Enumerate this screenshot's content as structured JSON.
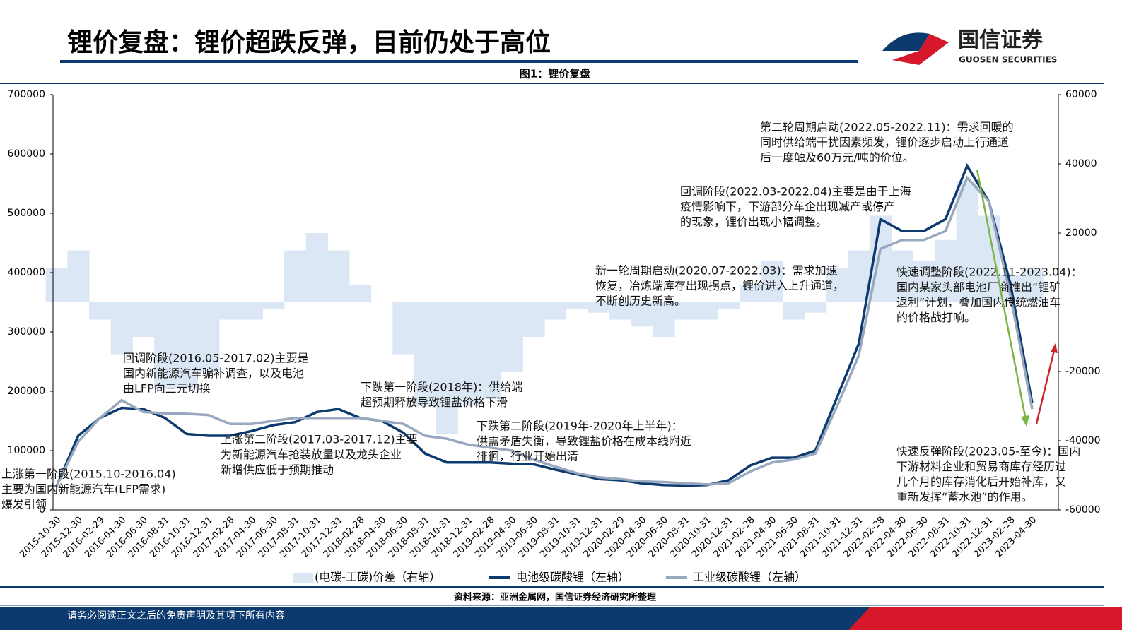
{
  "header": {
    "title": "锂价复盘：锂价超跌反弹，目前仍处于高位",
    "logo_cn": "国信证券",
    "logo_en": "GUOSEN SECURITIES"
  },
  "chart_data": {
    "type": "combo",
    "title": "图1：锂价复盘",
    "categories": [
      "2015-10-30",
      "2015-12-30",
      "2016-02-29",
      "2016-04-30",
      "2016-06-30",
      "2016-08-31",
      "2016-10-31",
      "2016-12-31",
      "2017-02-28",
      "2017-04-30",
      "2017-06-30",
      "2017-08-31",
      "2017-10-31",
      "2017-12-31",
      "2018-02-28",
      "2018-04-30",
      "2018-06-30",
      "2018-08-31",
      "2018-10-31",
      "2018-12-31",
      "2019-02-28",
      "2019-04-30",
      "2019-06-30",
      "2019-08-31",
      "2019-10-31",
      "2019-12-31",
      "2020-02-29",
      "2020-04-30",
      "2020-06-30",
      "2020-08-31",
      "2020-10-31",
      "2020-12-31",
      "2021-02-28",
      "2021-04-30",
      "2021-06-30",
      "2021-08-31",
      "2021-10-31",
      "2021-12-31",
      "2022-02-28",
      "2022-04-30",
      "2022-06-30",
      "2022-08-31",
      "2022-10-31",
      "2022-12-31",
      "2023-02-28",
      "2023-04-30"
    ],
    "series": [
      {
        "name": "(电碳-工碳)价差（右轴）",
        "color": "#dbe7f4",
        "axis": "y2",
        "kind": "area",
        "values": [
          10000,
          15000,
          -5000,
          -15000,
          -10000,
          -25000,
          -25000,
          -20000,
          -5000,
          -5000,
          -2000,
          15000,
          20000,
          15000,
          5000,
          0,
          -15000,
          -30000,
          -38000,
          -30000,
          -28000,
          -20000,
          -10000,
          -5000,
          -2000,
          -3000,
          -5000,
          -7000,
          -10000,
          -5000,
          -5000,
          -2000,
          5000,
          12000,
          -5000,
          -3000,
          10000,
          15000,
          25000,
          15000,
          12000,
          18000,
          35000,
          25000,
          8000,
          10000
        ]
      },
      {
        "name": "电池级碳酸锂（左轴）",
        "color": "#0d3a6e",
        "kind": "line",
        "values": [
          40000,
          125000,
          155000,
          172000,
          170000,
          155000,
          128000,
          125000,
          125000,
          133000,
          143000,
          148000,
          165000,
          170000,
          155000,
          150000,
          130000,
          95000,
          80000,
          80000,
          80000,
          78000,
          77000,
          68000,
          60000,
          52000,
          50000,
          45000,
          42000,
          41000,
          42000,
          50000,
          75000,
          88000,
          88000,
          100000,
          190000,
          280000,
          490000,
          470000,
          470000,
          490000,
          580000,
          520000,
          380000,
          180000
        ]
      },
      {
        "name": "工业级碳酸锂（左轴）",
        "color": "#97a8bf",
        "kind": "line",
        "values": [
          40000,
          115000,
          155000,
          185000,
          165000,
          163000,
          162000,
          160000,
          145000,
          145000,
          150000,
          155000,
          155000,
          155000,
          155000,
          150000,
          145000,
          125000,
          120000,
          110000,
          105000,
          100000,
          85000,
          73000,
          62000,
          55000,
          52000,
          48000,
          47000,
          45000,
          43000,
          45000,
          65000,
          80000,
          85000,
          95000,
          175000,
          260000,
          440000,
          455000,
          455000,
          470000,
          560000,
          520000,
          360000,
          170000
        ]
      }
    ],
    "ylim": [
      0,
      700000
    ],
    "yticks": [
      0,
      100000,
      200000,
      300000,
      400000,
      500000,
      600000,
      700000
    ],
    "y2lim": [
      -60000,
      60000
    ],
    "y2ticks": [
      -60000,
      -40000,
      -20000,
      20000,
      40000,
      60000
    ],
    "annotations": [
      [
        "上涨第一阶段(2015.10-2016.04)",
        "主要为国内新能源汽车(LFP需求)",
        "爆发引领"
      ],
      [
        "回调阶段(2016.05-2017.02)主要是",
        "国内新能源汽车骗补调查，以及电池",
        "由LFP向三元切换"
      ],
      [
        "上涨第二阶段(2017.03-2017.12)主要",
        "为新能源汽车抢装放量以及龙头企业",
        "新增供应低于预期推动"
      ],
      [
        "下跌第一阶段(2018年)：供给端",
        "超预期释放导致锂盐价格下滑"
      ],
      [
        "下跌第二阶段(2019年-2020年上半年)：",
        "供需矛盾失衡，导致锂盐价格在成本线附近",
        "徘徊，行业开始出清"
      ],
      [
        "新一轮周期启动(2020.07-2022.03)：需求加速",
        "恢复，冶炼端库存出现拐点，锂价进入上升通道，",
        "不断创历史新高。"
      ],
      [
        "回调阶段(2022.03-2022.04)主要是由于上海",
        "疫情影响下，下游部分车企出现减产或停产",
        "的现象，锂价出现小幅调整。"
      ],
      [
        "第二轮周期启动(2022.05-2022.11)：需求回暖的",
        "同时供给端干扰因素频发，锂价逐步启动上行通道",
        "后一度触及60万元/吨的价位。"
      ],
      [
        "快速调整阶段(2022.11-2023.04)：",
        "国内某家头部电池厂商推出“锂矿",
        "返利”计划，叠加国内传统燃油车",
        "的价格战打响。"
      ],
      [
        "快速反弹阶段(2023.05-至今)：国内",
        "下游材料企业和贸易商库存经历过",
        "几个月的库存消化后开始补库，又",
        "重新发挥“蓄水池”的作用。"
      ]
    ],
    "source": "资料来源：亚洲金属网，国信证券经济研究所整理"
  },
  "footer": {
    "disclaimer": "请务必阅读正文之后的免责声明及其项下所有内容"
  }
}
